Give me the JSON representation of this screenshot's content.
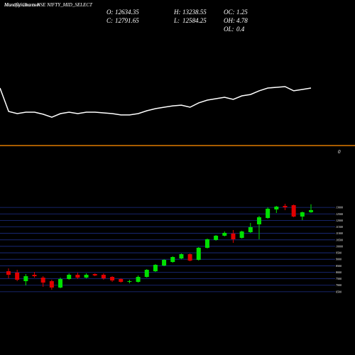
{
  "header": {
    "title": "Monthly Charts NSE NIFTY_MID_SELECT",
    "site": "MunafaSutra.com",
    "stats": [
      {
        "label": "O:",
        "value": 12634.35
      },
      {
        "label": "C:",
        "value": 12791.65
      },
      {
        "label": "H:",
        "value": 13238.55
      },
      {
        "label": "L:",
        "value": 12584.25
      },
      {
        "label": "OC:",
        "value": 1.25
      },
      {
        "label": "OH:",
        "value": 4.78
      },
      {
        "label": "OL:",
        "value": 0.4
      }
    ]
  },
  "chart_data": [
    {
      "type": "line",
      "color": "#ffffff",
      "ylim": [
        0,
        100
      ],
      "reference_line": 0,
      "reference_color": "#e07b00",
      "values": [
        49.1,
        29.1,
        27.3,
        28.5,
        28.5,
        26.7,
        24.2,
        27.3,
        28.5,
        27.3,
        28.5,
        28.5,
        27.9,
        27.3,
        26.1,
        26.1,
        27.3,
        29.7,
        31.5,
        32.7,
        33.9,
        34.5,
        32.7,
        36.4,
        38.8,
        40,
        41.2,
        39.4,
        42.4,
        43.6,
        46.7,
        49.1,
        49.7,
        50.3,
        46.7,
        47.9,
        49.1
      ]
    },
    {
      "type": "candlestick",
      "up_color": "#00e000",
      "down_color": "#e00000",
      "grid_color": "#1c2f8a",
      "ylim": [
        6000,
        13500
      ],
      "yticks": [
        6500,
        7000,
        7500,
        8000,
        8500,
        9000,
        9500,
        10000,
        10500,
        11000,
        11500,
        12000,
        12500,
        13000
      ],
      "open": [
        8080,
        7971,
        7314,
        7806,
        7588,
        7314,
        6821,
        7478,
        7806,
        7588,
        7861,
        7806,
        7642,
        7478,
        7259,
        7259,
        7642,
        8080,
        8518,
        8792,
        9066,
        9394,
        8956,
        9887,
        10489,
        10817,
        10981,
        10653,
        11091,
        11693,
        12186,
        12843,
        13117,
        13171,
        12295,
        12634.35
      ],
      "close": [
        7806,
        7423,
        7697,
        7697,
        7204,
        6821,
        7478,
        7806,
        7588,
        7806,
        7752,
        7533,
        7369,
        7259,
        7314,
        7642,
        8189,
        8573,
        8956,
        9175,
        9394,
        8901,
        9887,
        10543,
        10817,
        11036,
        10543,
        11146,
        11474,
        12241,
        12897,
        13062,
        13007,
        12295,
        12624,
        12791.65
      ],
      "high": [
        8299,
        8189,
        7861,
        8025,
        7697,
        7423,
        7588,
        7916,
        7971,
        7916,
        7916,
        7916,
        7697,
        7533,
        7423,
        7752,
        8244,
        8627,
        9011,
        9230,
        9449,
        9449,
        9942,
        10598,
        10872,
        11146,
        11255,
        11200,
        11802,
        12350,
        13007,
        13117,
        13281,
        13226,
        12679,
        13238.55
      ],
      "low": [
        7533,
        7314,
        6985,
        7588,
        6876,
        6657,
        6766,
        7423,
        7478,
        7533,
        7697,
        7423,
        7259,
        7204,
        7150,
        7204,
        7588,
        8025,
        8463,
        8737,
        9011,
        8846,
        8901,
        9832,
        10434,
        10762,
        10270,
        10598,
        11036,
        10543,
        12131,
        12569,
        12788,
        12241,
        12022,
        12584.25
      ]
    }
  ]
}
